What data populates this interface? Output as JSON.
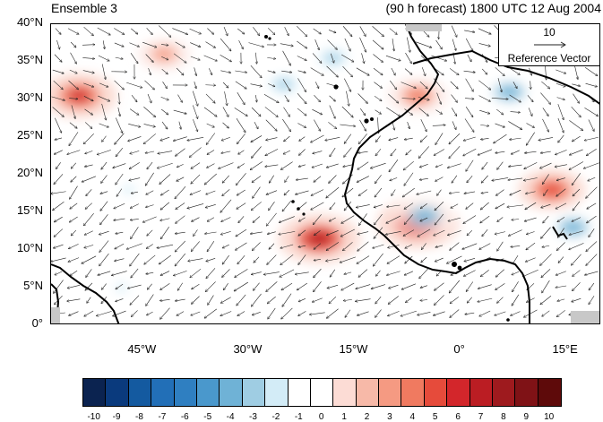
{
  "title_left": "Ensemble 3",
  "title_right": "(90 h forecast) 1800 UTC 12 Aug 2004",
  "lat_labels": [
    "40°N",
    "35°N",
    "30°N",
    "25°N",
    "20°N",
    "15°N",
    "10°N",
    "5°N",
    "0°"
  ],
  "lon_labels": [
    "45°W",
    "30°W",
    "15°W",
    "0°",
    "15°E"
  ],
  "reference_vector": {
    "magnitude": "10",
    "label": "Reference Vector"
  },
  "colorbar": {
    "labels": [
      "-10",
      "-9",
      "-8",
      "-7",
      "-6",
      "-5",
      "-4",
      "-3",
      "-2",
      "-1",
      "0",
      "1",
      "2",
      "3",
      "4",
      "5",
      "6",
      "7",
      "8",
      "9",
      "10"
    ],
    "colors": [
      "#0b2350",
      "#0a3a7d",
      "#145aa0",
      "#226fb7",
      "#2f7fc1",
      "#4a98cc",
      "#6fb2d6",
      "#9fcde3",
      "#d3ecf7",
      "#ffffff",
      "#ffffff",
      "#fcdcd5",
      "#f7b9a8",
      "#f59a82",
      "#f07a60",
      "#e64b3b",
      "#d3262b",
      "#bb1d23",
      "#9e1a1e",
      "#7f1216",
      "#5e0a0a"
    ]
  },
  "anomaly_features": [
    {
      "sign": "positive",
      "lat": 30.5,
      "lon": -54,
      "value": 6
    },
    {
      "sign": "positive",
      "lat": 36,
      "lon": -42,
      "value": 3
    },
    {
      "sign": "negative",
      "lat": 32,
      "lon": -25,
      "value": -3
    },
    {
      "sign": "negative",
      "lat": 35.5,
      "lon": -18,
      "value": -3
    },
    {
      "sign": "positive",
      "lat": 11.5,
      "lon": -20,
      "value": 7
    },
    {
      "sign": "positive",
      "lat": 13.5,
      "lon": -6,
      "value": 7
    },
    {
      "sign": "negative",
      "lat": 14.5,
      "lon": -5,
      "value": -4
    },
    {
      "sign": "positive",
      "lat": 30.5,
      "lon": -6,
      "value": 4
    },
    {
      "sign": "positive",
      "lat": 18,
      "lon": 13,
      "value": 5
    },
    {
      "sign": "negative",
      "lat": 31,
      "lon": 7,
      "value": -4
    },
    {
      "sign": "negative",
      "lat": 13,
      "lon": 16,
      "value": -4
    },
    {
      "sign": "negative",
      "lat": 18,
      "lon": -47,
      "value": -2
    },
    {
      "sign": "negative",
      "lat": 5,
      "lon": -48,
      "value": -2
    }
  ]
}
